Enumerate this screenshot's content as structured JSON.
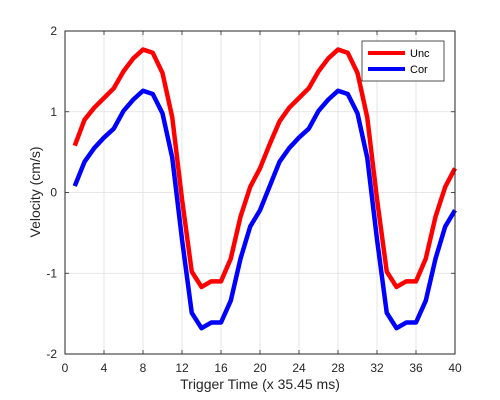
{
  "chart_data": {
    "type": "line",
    "title": "",
    "xlabel": "Trigger Time (x 35.45 ms)",
    "ylabel": "Velocity (cm/s)",
    "xlim": [
      0,
      40
    ],
    "ylim": [
      -2,
      2
    ],
    "xticks": [
      0,
      4,
      8,
      12,
      16,
      20,
      24,
      28,
      32,
      36,
      40
    ],
    "yticks": [
      -2,
      -1,
      0,
      1,
      2
    ],
    "grid": true,
    "legend_position": "top-right",
    "series": [
      {
        "name": "Unc",
        "color": "#ff0000",
        "x": [
          1,
          2,
          3,
          4,
          5,
          6,
          7,
          8,
          9,
          10,
          11,
          12,
          13,
          14,
          15,
          16,
          17,
          18,
          19,
          20,
          21,
          22,
          23,
          24,
          25,
          26,
          27,
          28,
          29,
          30,
          31,
          32,
          33,
          34,
          35,
          36,
          37,
          38,
          39,
          40
        ],
        "y": [
          0.58,
          0.9,
          1.05,
          1.17,
          1.29,
          1.5,
          1.66,
          1.77,
          1.73,
          1.48,
          0.93,
          -0.08,
          -0.98,
          -1.17,
          -1.1,
          -1.1,
          -0.82,
          -0.3,
          0.07,
          0.3,
          0.6,
          0.88,
          1.05,
          1.17,
          1.29,
          1.5,
          1.66,
          1.77,
          1.73,
          1.48,
          0.93,
          -0.08,
          -0.98,
          -1.17,
          -1.1,
          -1.1,
          -0.82,
          -0.3,
          0.07,
          0.3
        ]
      },
      {
        "name": "Cor",
        "color": "#0000ff",
        "x": [
          1,
          2,
          3,
          4,
          5,
          6,
          7,
          8,
          9,
          10,
          11,
          12,
          13,
          14,
          15,
          16,
          17,
          18,
          19,
          20,
          21,
          22,
          23,
          24,
          25,
          26,
          27,
          28,
          29,
          30,
          31,
          32,
          33,
          34,
          35,
          36,
          37,
          38,
          39,
          40
        ],
        "y": [
          0.08,
          0.38,
          0.55,
          0.68,
          0.79,
          1.01,
          1.15,
          1.26,
          1.22,
          0.98,
          0.43,
          -0.58,
          -1.49,
          -1.68,
          -1.61,
          -1.61,
          -1.34,
          -0.82,
          -0.42,
          -0.22,
          0.08,
          0.38,
          0.55,
          0.68,
          0.79,
          1.01,
          1.15,
          1.26,
          1.22,
          0.98,
          0.43,
          -0.58,
          -1.49,
          -1.68,
          -1.61,
          -1.61,
          -1.34,
          -0.82,
          -0.42,
          -0.22
        ]
      }
    ]
  }
}
